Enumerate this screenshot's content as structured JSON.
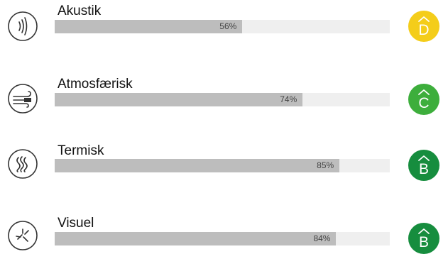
{
  "categories": [
    {
      "key": "akustik",
      "label": "Akustik",
      "icon": "sound-waves-icon",
      "percent": 56,
      "value_text": "56%",
      "grade": "D",
      "grade_color": "#f4cd1a"
    },
    {
      "key": "atmosfaerisk",
      "label": "Atmosfærisk",
      "icon": "air-flow-icon",
      "percent": 74,
      "value_text": "74%",
      "grade": "C",
      "grade_color": "#3dae3c"
    },
    {
      "key": "termisk",
      "label": "Termisk",
      "icon": "heat-waves-icon",
      "percent": 85,
      "value_text": "85%",
      "grade": "B",
      "grade_color": "#168d3e"
    },
    {
      "key": "visuel",
      "label": "Visuel",
      "icon": "light-icon",
      "percent": 84,
      "value_text": "84%",
      "grade": "B",
      "grade_color": "#168d3e"
    }
  ],
  "colors": {
    "bar_track": "#efefef",
    "bar_fill": "#bdbdbd",
    "icon_stroke": "#333333"
  }
}
